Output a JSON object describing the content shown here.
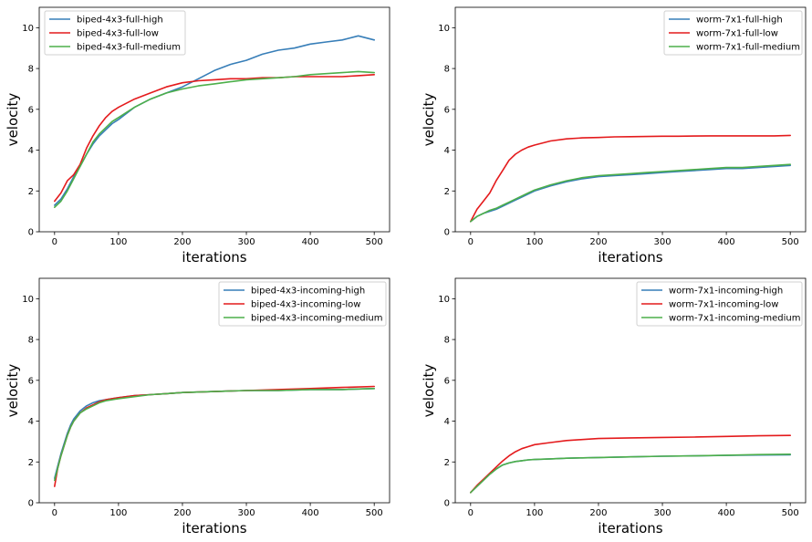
{
  "colors": {
    "high": "#377eb8",
    "low": "#e41a1c",
    "medium": "#4daf4a",
    "axis": "#000000",
    "legend_border": "#d0d0d0"
  },
  "chart_data": [
    {
      "type": "line",
      "xlabel": "iterations",
      "ylabel": "velocity",
      "xlim": [
        -24,
        524
      ],
      "ylim": [
        0,
        11
      ],
      "xticks": [
        0,
        100,
        200,
        300,
        400,
        500
      ],
      "yticks": [
        0,
        2,
        4,
        6,
        8,
        10
      ],
      "grid": false,
      "legend_placement": "upper-left",
      "series": [
        {
          "name": "biped-4x3-full-high",
          "color": "#377eb8",
          "x": [
            0,
            10,
            20,
            30,
            40,
            50,
            60,
            70,
            80,
            90,
            100,
            125,
            150,
            175,
            200,
            225,
            250,
            275,
            300,
            325,
            350,
            375,
            400,
            425,
            450,
            475,
            500
          ],
          "y": [
            1.3,
            1.6,
            2.1,
            2.7,
            3.2,
            3.8,
            4.3,
            4.7,
            5.0,
            5.3,
            5.5,
            6.1,
            6.5,
            6.8,
            7.1,
            7.5,
            7.9,
            8.2,
            8.4,
            8.7,
            8.9,
            9.0,
            9.2,
            9.3,
            9.4,
            9.6,
            9.4
          ]
        },
        {
          "name": "biped-4x3-full-low",
          "color": "#e41a1c",
          "x": [
            0,
            10,
            20,
            30,
            40,
            50,
            60,
            70,
            80,
            90,
            100,
            125,
            150,
            175,
            200,
            225,
            250,
            275,
            300,
            325,
            350,
            375,
            400,
            425,
            450,
            475,
            500
          ],
          "y": [
            1.5,
            1.9,
            2.5,
            2.8,
            3.3,
            4.1,
            4.7,
            5.2,
            5.6,
            5.9,
            6.1,
            6.5,
            6.8,
            7.1,
            7.3,
            7.4,
            7.45,
            7.5,
            7.5,
            7.55,
            7.55,
            7.6,
            7.6,
            7.6,
            7.6,
            7.65,
            7.7
          ]
        },
        {
          "name": "biped-4x3-full-medium",
          "color": "#4daf4a",
          "x": [
            0,
            10,
            20,
            30,
            40,
            50,
            60,
            70,
            80,
            90,
            100,
            125,
            150,
            175,
            200,
            225,
            250,
            275,
            300,
            325,
            350,
            375,
            400,
            425,
            450,
            475,
            500
          ],
          "y": [
            1.2,
            1.5,
            2.0,
            2.6,
            3.2,
            3.8,
            4.4,
            4.8,
            5.1,
            5.4,
            5.6,
            6.1,
            6.5,
            6.8,
            7.0,
            7.15,
            7.25,
            7.35,
            7.45,
            7.5,
            7.55,
            7.6,
            7.7,
            7.75,
            7.8,
            7.85,
            7.8
          ]
        }
      ]
    },
    {
      "type": "line",
      "xlabel": "iterations",
      "ylabel": "velocity",
      "xlim": [
        -24,
        524
      ],
      "ylim": [
        0,
        11
      ],
      "xticks": [
        0,
        100,
        200,
        300,
        400,
        500
      ],
      "yticks": [
        0,
        2,
        4,
        6,
        8,
        10
      ],
      "grid": false,
      "legend_placement": "upper-right",
      "series": [
        {
          "name": "worm-7x1-full-high",
          "color": "#377eb8",
          "x": [
            0,
            10,
            20,
            30,
            40,
            50,
            60,
            70,
            80,
            90,
            100,
            125,
            150,
            175,
            200,
            225,
            250,
            275,
            300,
            325,
            350,
            375,
            400,
            425,
            450,
            475,
            500
          ],
          "y": [
            0.5,
            0.75,
            0.9,
            1.0,
            1.1,
            1.25,
            1.4,
            1.55,
            1.7,
            1.85,
            2.0,
            2.25,
            2.45,
            2.6,
            2.7,
            2.75,
            2.8,
            2.85,
            2.9,
            2.95,
            3.0,
            3.05,
            3.1,
            3.1,
            3.15,
            3.2,
            3.25
          ]
        },
        {
          "name": "worm-7x1-full-low",
          "color": "#e41a1c",
          "x": [
            0,
            10,
            20,
            30,
            40,
            50,
            60,
            70,
            80,
            90,
            100,
            125,
            150,
            175,
            200,
            225,
            250,
            275,
            300,
            325,
            350,
            375,
            400,
            425,
            450,
            475,
            500
          ],
          "y": [
            0.5,
            1.1,
            1.5,
            1.9,
            2.5,
            3.0,
            3.5,
            3.8,
            4.0,
            4.15,
            4.25,
            4.45,
            4.55,
            4.6,
            4.62,
            4.65,
            4.66,
            4.67,
            4.68,
            4.68,
            4.69,
            4.7,
            4.7,
            4.7,
            4.7,
            4.7,
            4.72
          ]
        },
        {
          "name": "worm-7x1-full-medium",
          "color": "#4daf4a",
          "x": [
            0,
            10,
            20,
            30,
            40,
            50,
            60,
            70,
            80,
            90,
            100,
            125,
            150,
            175,
            200,
            225,
            250,
            275,
            300,
            325,
            350,
            375,
            400,
            425,
            450,
            475,
            500
          ],
          "y": [
            0.5,
            0.75,
            0.9,
            1.05,
            1.15,
            1.3,
            1.45,
            1.6,
            1.75,
            1.9,
            2.05,
            2.3,
            2.5,
            2.65,
            2.75,
            2.8,
            2.85,
            2.9,
            2.95,
            3.0,
            3.05,
            3.1,
            3.15,
            3.15,
            3.2,
            3.25,
            3.3
          ]
        }
      ]
    },
    {
      "type": "line",
      "xlabel": "iterations",
      "ylabel": "velocity",
      "xlim": [
        -24,
        524
      ],
      "ylim": [
        0,
        11
      ],
      "xticks": [
        0,
        100,
        200,
        300,
        400,
        500
      ],
      "yticks": [
        0,
        2,
        4,
        6,
        8,
        10
      ],
      "grid": false,
      "legend_placement": "upper-right",
      "series": [
        {
          "name": "biped-4x3-incoming-high",
          "color": "#377eb8",
          "x": [
            0,
            5,
            10,
            15,
            20,
            25,
            30,
            40,
            50,
            60,
            70,
            80,
            90,
            100,
            125,
            150,
            175,
            200,
            250,
            300,
            350,
            400,
            450,
            500
          ],
          "y": [
            1.2,
            1.8,
            2.4,
            2.9,
            3.4,
            3.8,
            4.1,
            4.5,
            4.75,
            4.9,
            5.0,
            5.05,
            5.1,
            5.15,
            5.25,
            5.3,
            5.35,
            5.4,
            5.45,
            5.5,
            5.5,
            5.55,
            5.55,
            5.6
          ]
        },
        {
          "name": "biped-4x3-incoming-low",
          "color": "#e41a1c",
          "x": [
            0,
            5,
            10,
            15,
            20,
            25,
            30,
            40,
            50,
            60,
            70,
            80,
            90,
            100,
            125,
            150,
            175,
            200,
            250,
            300,
            350,
            400,
            450,
            500
          ],
          "y": [
            0.8,
            1.7,
            2.3,
            2.8,
            3.3,
            3.7,
            4.0,
            4.4,
            4.65,
            4.8,
            4.95,
            5.05,
            5.1,
            5.15,
            5.25,
            5.3,
            5.35,
            5.4,
            5.45,
            5.5,
            5.55,
            5.6,
            5.65,
            5.7
          ]
        },
        {
          "name": "biped-4x3-incoming-medium",
          "color": "#4daf4a",
          "x": [
            0,
            5,
            10,
            15,
            20,
            25,
            30,
            40,
            50,
            60,
            70,
            80,
            90,
            100,
            125,
            150,
            175,
            200,
            250,
            300,
            350,
            400,
            450,
            500
          ],
          "y": [
            1.1,
            1.7,
            2.3,
            2.8,
            3.3,
            3.7,
            4.0,
            4.4,
            4.6,
            4.75,
            4.9,
            5.0,
            5.05,
            5.1,
            5.2,
            5.3,
            5.35,
            5.4,
            5.45,
            5.5,
            5.5,
            5.55,
            5.55,
            5.6
          ]
        }
      ]
    },
    {
      "type": "line",
      "xlabel": "iterations",
      "ylabel": "velocity",
      "xlim": [
        -24,
        524
      ],
      "ylim": [
        0,
        11
      ],
      "xticks": [
        0,
        100,
        200,
        300,
        400,
        500
      ],
      "yticks": [
        0,
        2,
        4,
        6,
        8,
        10
      ],
      "grid": false,
      "legend_placement": "upper-right",
      "series": [
        {
          "name": "worm-7x1-incoming-high",
          "color": "#377eb8",
          "x": [
            0,
            10,
            20,
            30,
            40,
            50,
            60,
            70,
            80,
            90,
            100,
            125,
            150,
            175,
            200,
            250,
            300,
            350,
            400,
            450,
            500
          ],
          "y": [
            0.5,
            0.8,
            1.1,
            1.4,
            1.65,
            1.85,
            1.95,
            2.02,
            2.06,
            2.1,
            2.12,
            2.15,
            2.18,
            2.2,
            2.22,
            2.25,
            2.28,
            2.3,
            2.32,
            2.34,
            2.35
          ]
        },
        {
          "name": "worm-7x1-incoming-low",
          "color": "#e41a1c",
          "x": [
            0,
            10,
            20,
            30,
            40,
            50,
            60,
            70,
            80,
            90,
            100,
            125,
            150,
            175,
            200,
            250,
            300,
            350,
            400,
            450,
            500
          ],
          "y": [
            0.5,
            0.85,
            1.15,
            1.45,
            1.75,
            2.05,
            2.3,
            2.5,
            2.65,
            2.75,
            2.85,
            2.95,
            3.05,
            3.1,
            3.15,
            3.18,
            3.2,
            3.22,
            3.25,
            3.28,
            3.3
          ]
        },
        {
          "name": "worm-7x1-incoming-medium",
          "color": "#4daf4a",
          "x": [
            0,
            10,
            20,
            30,
            40,
            50,
            60,
            70,
            80,
            90,
            100,
            125,
            150,
            175,
            200,
            250,
            300,
            350,
            400,
            450,
            500
          ],
          "y": [
            0.5,
            0.8,
            1.1,
            1.4,
            1.65,
            1.85,
            1.95,
            2.02,
            2.06,
            2.1,
            2.12,
            2.15,
            2.18,
            2.2,
            2.22,
            2.25,
            2.28,
            2.3,
            2.33,
            2.36,
            2.38
          ]
        }
      ]
    }
  ]
}
